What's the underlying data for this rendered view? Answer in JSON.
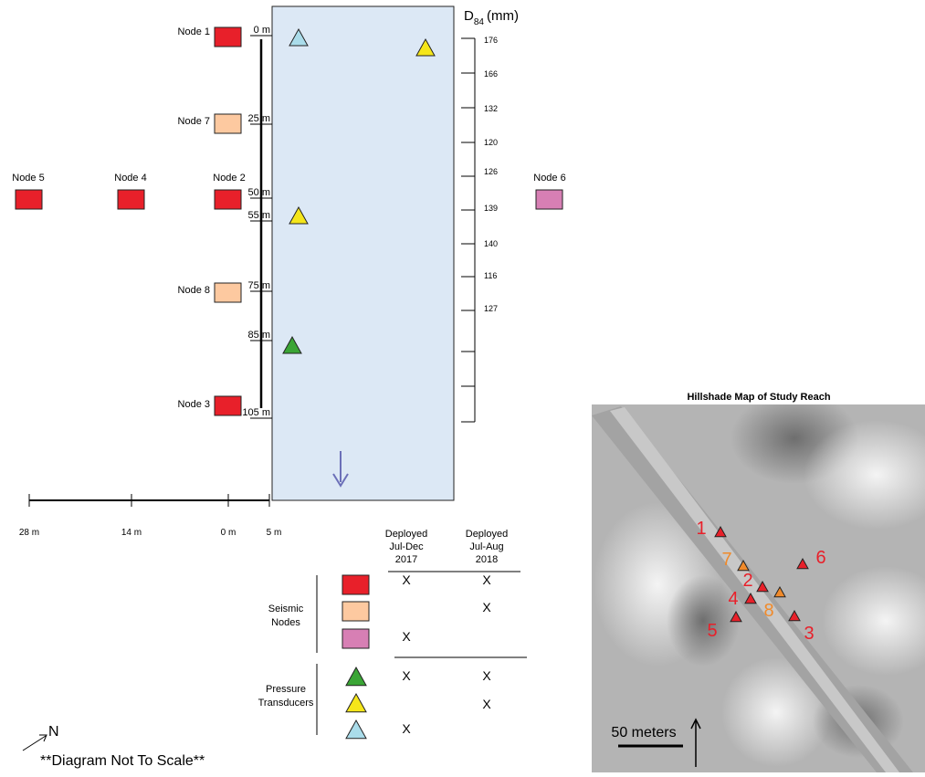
{
  "nodes": [
    {
      "label": "Node 1"
    },
    {
      "label": "Node 7"
    },
    {
      "label": "Node 5"
    },
    {
      "label": "Node 4"
    },
    {
      "label": "Node 2"
    },
    {
      "label": "Node 6"
    },
    {
      "label": "Node 8"
    },
    {
      "label": "Node 3"
    }
  ],
  "distance_labels": [
    "0 m",
    "25 m",
    "50 m",
    "55 m",
    "75 m",
    "85 m",
    "105 m"
  ],
  "d84": {
    "symbol": "D",
    "subscript": "84",
    "unit": "(mm)",
    "values": [
      "176",
      "166",
      "132",
      "120",
      "126",
      "139",
      "140",
      "116",
      "127"
    ]
  },
  "scale_bar": [
    "28 m",
    "14 m",
    "0 m",
    "5 m"
  ],
  "legend": {
    "columns": [
      {
        "lines": [
          "Deployed",
          "Jul-Dec",
          "2017"
        ]
      },
      {
        "lines": [
          "Deployed",
          "Jul-Aug",
          "2018"
        ]
      }
    ],
    "groups": [
      {
        "lines": [
          "Seismic",
          "Nodes"
        ],
        "rows": [
          {
            "jul_dec_2017": "X",
            "jul_aug_2018": "X"
          },
          {
            "jul_aug_2018": "X"
          },
          {
            "jul_dec_2017": "X"
          }
        ]
      },
      {
        "lines": [
          "Pressure",
          "Transducers"
        ],
        "rows": [
          {
            "jul_dec_2017": "X",
            "jul_aug_2018": "X"
          },
          {
            "jul_aug_2018": "X"
          },
          {
            "jul_dec_2017": "X"
          }
        ]
      }
    ]
  },
  "north": "N",
  "note": "**Diagram Not To Scale**",
  "map": {
    "title": "Hillshade Map of Study Reach",
    "markers": [
      "1",
      "7",
      "2",
      "6",
      "4",
      "8",
      "5",
      "3"
    ],
    "scale_label": "50 meters"
  }
}
